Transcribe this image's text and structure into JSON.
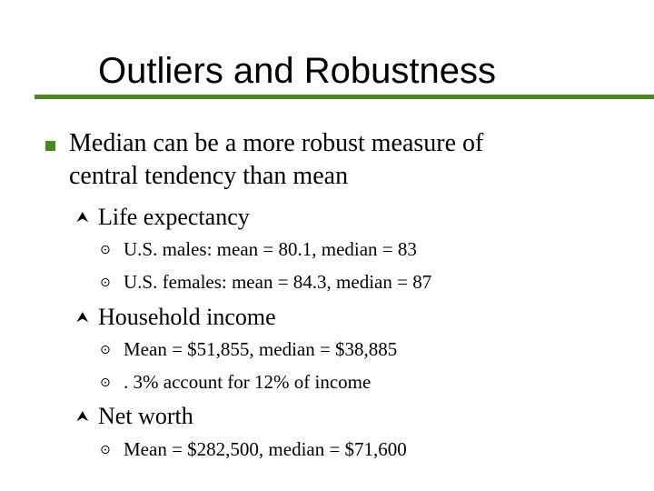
{
  "colors": {
    "accent": "#4a8a1c",
    "text": "#000000"
  },
  "icons": {
    "level1": "square-bullet-icon",
    "level2": "arrow-bullet-icon",
    "level3": "dot-bullet-icon"
  },
  "title": "Outliers and Robustness",
  "main": {
    "point": {
      "line1": "Median can be a more robust measure of",
      "line2": "central tendency than mean"
    },
    "sections": [
      {
        "label": "Life expectancy",
        "items": [
          "U.S. males:  mean = 80.1, median = 83",
          "U.S. females:  mean = 84.3, median = 87"
        ]
      },
      {
        "label": "Household income",
        "items": [
          "Mean = $51,855, median = $38,885",
          ". 3% account for 12% of income"
        ]
      },
      {
        "label": "Net worth",
        "items": [
          "Mean = $282,500, median = $71,600"
        ]
      }
    ]
  }
}
